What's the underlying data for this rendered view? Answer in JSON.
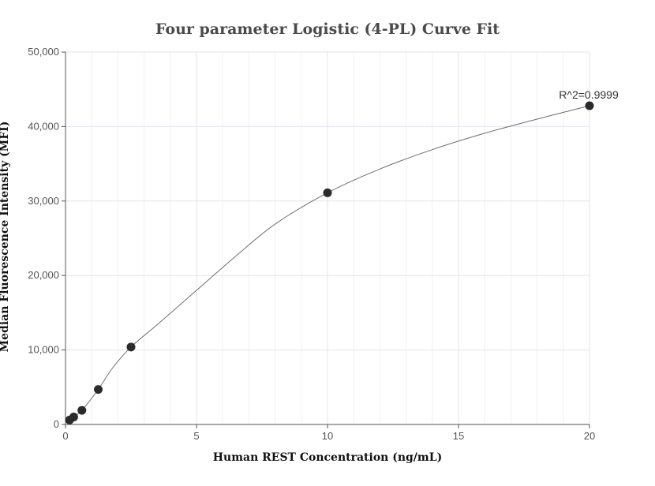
{
  "chart_data": {
    "type": "scatter",
    "title": "Four parameter Logistic (4-PL) Curve Fit",
    "xlabel": "Human REST Concentration (ng/mL)",
    "ylabel": "Median Fluorescence Intensity (MFI)",
    "xlim": [
      0,
      20
    ],
    "ylim": [
      0,
      50000
    ],
    "x_ticks": [
      0,
      5,
      10,
      15,
      20
    ],
    "x_tick_labels": [
      "0",
      "5",
      "10",
      "15",
      "20"
    ],
    "y_ticks": [
      0,
      10000,
      20000,
      30000,
      40000,
      50000
    ],
    "y_tick_labels": [
      "0",
      "10,000",
      "20,000",
      "30,000",
      "40,000",
      "50,000"
    ],
    "grid": true,
    "series": [
      {
        "x": [
          0.156,
          0.313,
          0.625,
          1.25,
          2.5,
          10,
          20
        ],
        "y": [
          600,
          1000,
          1900,
          4700,
          10400,
          31100,
          42800
        ],
        "color": "#2b2b2b"
      }
    ],
    "fit_curve": {
      "x": [
        0.156,
        0.313,
        0.625,
        1.25,
        1.8,
        2.5,
        3.5,
        5,
        6.5,
        8,
        10,
        12,
        14,
        16,
        18,
        20
      ],
      "y": [
        600,
        1000,
        1900,
        4700,
        7600,
        10400,
        13400,
        18000,
        22600,
        26900,
        31100,
        34300,
        36900,
        39100,
        41000,
        42800
      ],
      "color": "#6e6e6e"
    },
    "annotations": [
      {
        "text": "R^2=0.9999",
        "x": 20,
        "y": 42800
      }
    ]
  }
}
